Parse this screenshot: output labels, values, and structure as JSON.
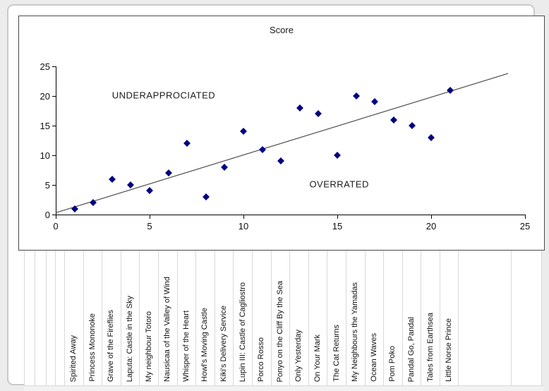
{
  "colors": {
    "marker": "#000080",
    "trendline": "#4d4d4d",
    "axis": "#000000",
    "grid_separator": "#d9d9d9",
    "card_border": "#c9c9c9",
    "outer_background": "#ececec"
  },
  "chart_data": {
    "type": "scatter",
    "title": "Score",
    "xlabel": "",
    "ylabel": "",
    "xlim": [
      0,
      25
    ],
    "ylim": [
      0,
      25
    ],
    "x_ticks": [
      0,
      5,
      10,
      15,
      20,
      25
    ],
    "y_ticks": [
      0,
      5,
      10,
      15,
      20,
      25
    ],
    "grid": "off",
    "legend": "none",
    "points": [
      {
        "label": "Spirited Away",
        "x": 1,
        "y": 1
      },
      {
        "label": "Princess Mononoke",
        "x": 2,
        "y": 2
      },
      {
        "label": "Grave of the Fireflies",
        "x": 3,
        "y": 6
      },
      {
        "label": "Laputa: Castle in the Sky",
        "x": 4,
        "y": 5
      },
      {
        "label": "My neighbour Totoro",
        "x": 5,
        "y": 4
      },
      {
        "label": "Nausicaa of the Valley of Wind",
        "x": 6,
        "y": 7
      },
      {
        "label": "Whisper of the Heart",
        "x": 7,
        "y": 12
      },
      {
        "label": "Howl's Moving Castle",
        "x": 8,
        "y": 3
      },
      {
        "label": "Kiki's Delivery Service",
        "x": 9,
        "y": 8
      },
      {
        "label": "Lupin III: Castle of Cagliostro",
        "x": 10,
        "y": 14
      },
      {
        "label": "Porco Rosso",
        "x": 11,
        "y": 11
      },
      {
        "label": "Ponyo on the Cliff By the Sea",
        "x": 12,
        "y": 9
      },
      {
        "label": "Only Yesterday",
        "x": 13,
        "y": 18
      },
      {
        "label": "On Your Mark",
        "x": 14,
        "y": 17
      },
      {
        "label": "The Cat Returns",
        "x": 15,
        "y": 10
      },
      {
        "label": "My Neighbours the Yamadas",
        "x": 16,
        "y": 20
      },
      {
        "label": "Ocean Waves",
        "x": 17,
        "y": 19
      },
      {
        "label": "Pom Poko",
        "x": 18,
        "y": 16
      },
      {
        "label": "Pandal Go, Pandal",
        "x": 19,
        "y": 15
      },
      {
        "label": "Tales from Earthsea",
        "x": 20,
        "y": 13
      },
      {
        "label": "Little Norse Prince",
        "x": 21,
        "y": 21
      }
    ],
    "trendline": {
      "x1": 0,
      "y1": 0.3,
      "x2": 24.1,
      "y2": 23.8
    },
    "annotations": [
      {
        "text": "UNDERAPPROCIATED",
        "x": 5.75,
        "y": 20.1
      },
      {
        "text": "OVERRATED",
        "x": 15.1,
        "y": 5.1
      }
    ]
  }
}
